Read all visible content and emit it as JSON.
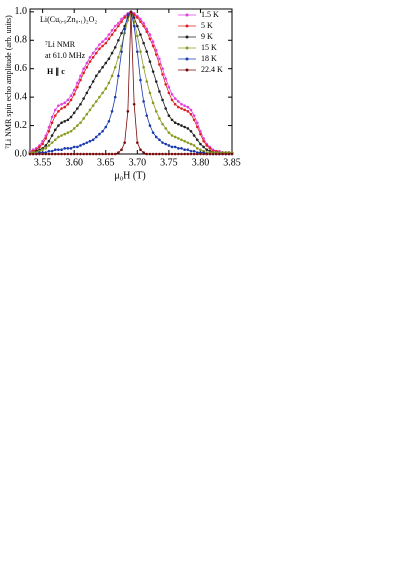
{
  "chart_data": {
    "type": "line",
    "annotations": [
      "Li(Cu₀.₉Zn₀.₁)₂O₂",
      "⁷Li NMR",
      "at 61.0 MHz",
      "H ∥ c"
    ],
    "xlabel": "μ₀H (T)",
    "ylabel": "⁷Li NMR spin echo amplitude (arb. units)",
    "x": [
      3.53,
      3.535,
      3.54,
      3.545,
      3.55,
      3.555,
      3.56,
      3.565,
      3.57,
      3.575,
      3.58,
      3.585,
      3.59,
      3.595,
      3.6,
      3.605,
      3.61,
      3.615,
      3.62,
      3.625,
      3.63,
      3.635,
      3.64,
      3.645,
      3.65,
      3.655,
      3.66,
      3.665,
      3.67,
      3.675,
      3.68,
      3.685,
      3.69,
      3.695,
      3.7,
      3.705,
      3.71,
      3.715,
      3.72,
      3.725,
      3.73,
      3.735,
      3.74,
      3.745,
      3.75,
      3.755,
      3.76,
      3.765,
      3.77,
      3.775,
      3.78,
      3.785,
      3.79,
      3.795,
      3.8,
      3.805,
      3.81,
      3.815,
      3.82,
      3.825,
      3.83,
      3.835,
      3.84,
      3.845,
      3.85
    ],
    "series": [
      {
        "name": "1.5 K",
        "color": "#e040e0",
        "values": [
          0.02,
          0.03,
          0.04,
          0.06,
          0.09,
          0.13,
          0.19,
          0.26,
          0.31,
          0.34,
          0.35,
          0.36,
          0.38,
          0.41,
          0.45,
          0.5,
          0.55,
          0.6,
          0.64,
          0.68,
          0.71,
          0.74,
          0.77,
          0.79,
          0.81,
          0.84,
          0.87,
          0.9,
          0.92,
          0.95,
          0.97,
          0.99,
          1.0,
          0.99,
          0.97,
          0.95,
          0.92,
          0.88,
          0.84,
          0.79,
          0.73,
          0.67,
          0.6,
          0.53,
          0.47,
          0.42,
          0.39,
          0.37,
          0.35,
          0.34,
          0.33,
          0.31,
          0.27,
          0.22,
          0.16,
          0.11,
          0.07,
          0.05,
          0.03,
          0.02,
          0.02,
          0.01,
          0.01,
          0.01,
          0.01
        ]
      },
      {
        "name": "5 K",
        "color": "#e02020",
        "values": [
          0.01,
          0.02,
          0.03,
          0.05,
          0.07,
          0.11,
          0.16,
          0.22,
          0.27,
          0.3,
          0.32,
          0.33,
          0.35,
          0.38,
          0.42,
          0.47,
          0.52,
          0.57,
          0.61,
          0.65,
          0.68,
          0.71,
          0.74,
          0.76,
          0.78,
          0.81,
          0.84,
          0.87,
          0.9,
          0.93,
          0.96,
          0.98,
          1.0,
          0.98,
          0.96,
          0.93,
          0.9,
          0.86,
          0.81,
          0.76,
          0.7,
          0.63,
          0.56,
          0.49,
          0.43,
          0.38,
          0.35,
          0.33,
          0.32,
          0.31,
          0.3,
          0.28,
          0.24,
          0.19,
          0.14,
          0.09,
          0.06,
          0.04,
          0.02,
          0.02,
          0.01,
          0.01,
          0.01,
          0.01,
          0.01
        ]
      },
      {
        "name": "9 K",
        "color": "#222222",
        "values": [
          0.01,
          0.01,
          0.02,
          0.03,
          0.04,
          0.06,
          0.09,
          0.13,
          0.17,
          0.2,
          0.22,
          0.23,
          0.24,
          0.26,
          0.29,
          0.32,
          0.35,
          0.39,
          0.43,
          0.47,
          0.51,
          0.55,
          0.58,
          0.61,
          0.64,
          0.67,
          0.71,
          0.75,
          0.8,
          0.85,
          0.9,
          0.96,
          1.0,
          0.96,
          0.9,
          0.84,
          0.78,
          0.72,
          0.65,
          0.58,
          0.51,
          0.44,
          0.38,
          0.32,
          0.27,
          0.24,
          0.22,
          0.21,
          0.2,
          0.19,
          0.18,
          0.16,
          0.13,
          0.1,
          0.07,
          0.05,
          0.03,
          0.02,
          0.01,
          0.01,
          0.01,
          0.01,
          0.01,
          0.01,
          0.01
        ]
      },
      {
        "name": "15 K",
        "color": "#8a9a20",
        "values": [
          0.01,
          0.01,
          0.01,
          0.02,
          0.03,
          0.04,
          0.06,
          0.08,
          0.1,
          0.12,
          0.13,
          0.14,
          0.15,
          0.16,
          0.18,
          0.2,
          0.22,
          0.25,
          0.28,
          0.31,
          0.34,
          0.37,
          0.4,
          0.43,
          0.46,
          0.5,
          0.55,
          0.61,
          0.68,
          0.76,
          0.85,
          0.94,
          1.0,
          0.93,
          0.83,
          0.72,
          0.61,
          0.51,
          0.43,
          0.36,
          0.3,
          0.25,
          0.21,
          0.18,
          0.15,
          0.13,
          0.12,
          0.11,
          0.1,
          0.09,
          0.08,
          0.07,
          0.06,
          0.04,
          0.03,
          0.02,
          0.01,
          0.01,
          0.01,
          0.01,
          0.01,
          0.01,
          0.01,
          0.01,
          0.01
        ]
      },
      {
        "name": "18 K",
        "color": "#1a3ab0",
        "values": [
          0,
          0,
          0,
          0.01,
          0.01,
          0.01,
          0.02,
          0.02,
          0.03,
          0.03,
          0.03,
          0.04,
          0.04,
          0.04,
          0.05,
          0.05,
          0.06,
          0.07,
          0.08,
          0.09,
          0.1,
          0.12,
          0.14,
          0.16,
          0.19,
          0.23,
          0.3,
          0.4,
          0.55,
          0.72,
          0.88,
          0.98,
          1.0,
          0.9,
          0.72,
          0.52,
          0.37,
          0.27,
          0.2,
          0.15,
          0.12,
          0.1,
          0.08,
          0.07,
          0.06,
          0.05,
          0.05,
          0.04,
          0.04,
          0.03,
          0.03,
          0.02,
          0.02,
          0.01,
          0.01,
          0.01,
          0,
          0,
          0,
          0,
          0,
          0,
          0,
          0,
          0
        ]
      },
      {
        "name": "22.4 K",
        "color": "#7a0a0a",
        "values": [
          0,
          0,
          0,
          0,
          0,
          0,
          0,
          0,
          0,
          0,
          0,
          0,
          0,
          0,
          0,
          0,
          0,
          0,
          0,
          0,
          0,
          0,
          0,
          0,
          0,
          0,
          0,
          0,
          0.01,
          0.03,
          0.08,
          0.3,
          1.0,
          0.35,
          0.08,
          0.03,
          0.01,
          0,
          0,
          0,
          0,
          0,
          0,
          0,
          0,
          0,
          0,
          0,
          0,
          0,
          0,
          0,
          0,
          0,
          0,
          0,
          0,
          0,
          0,
          0,
          0,
          0,
          0,
          0,
          0
        ]
      }
    ],
    "xlim": [
      3.53,
      3.85
    ],
    "xticks": [
      3.55,
      {
        "value": 3.6,
        "label": "3.60"
      },
      3.65,
      {
        "value": 3.7,
        "label": "3.70"
      },
      3.75,
      {
        "value": 3.8,
        "label": "3.80"
      },
      3.85
    ],
    "ylim": [
      0,
      1.02
    ],
    "yticks": [
      {
        "value": 0,
        "label": "0.0"
      },
      0.2,
      0.4,
      0.6,
      0.8,
      {
        "value": 1,
        "label": "1.0"
      }
    ],
    "legend": "upper right"
  }
}
